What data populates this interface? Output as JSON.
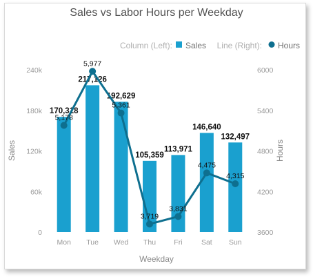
{
  "chart_data": {
    "type": "bar",
    "title": "Sales vs Labor Hours per Weekday",
    "legend": {
      "column_label": "Column (Left):",
      "line_label": "Line (Right):",
      "placement": "top-right"
    },
    "xlabel": "Weekday",
    "ylabel_left": "Sales",
    "ylabel_right": "Hours",
    "categories": [
      "Mon",
      "Tue",
      "Wed",
      "Thu",
      "Fri",
      "Sat",
      "Sun"
    ],
    "series": [
      {
        "name": "Sales",
        "type": "column",
        "axis": "left",
        "color": "#1aa0cf",
        "values": [
          170318,
          217126,
          192629,
          105359,
          113971,
          146640,
          132497
        ],
        "labels": [
          "170,318",
          "217,126",
          "192,629",
          "105,359",
          "113,971",
          "146,640",
          "132,497"
        ]
      },
      {
        "name": "Hours",
        "type": "line",
        "axis": "right",
        "color": "#0e6f8f",
        "values": [
          5178,
          5977,
          5361,
          3719,
          3831,
          4475,
          4315
        ],
        "labels": [
          "5,178",
          "5,977",
          "5,361",
          "3,719",
          "3,831",
          "4,475",
          "4,315"
        ]
      }
    ],
    "ylim_left": [
      0,
      240000
    ],
    "yticks_left": [
      0,
      60000,
      120000,
      180000,
      240000
    ],
    "yticklabels_left": [
      "0",
      "60k",
      "120k",
      "180k",
      "240k"
    ],
    "ylim_right": [
      3600,
      6000
    ],
    "yticks_right": [
      3600,
      4200,
      4800,
      5400,
      6000
    ],
    "yticklabels_right": [
      "3600",
      "4200",
      "4800",
      "5400",
      "6000"
    ],
    "grid": false
  }
}
